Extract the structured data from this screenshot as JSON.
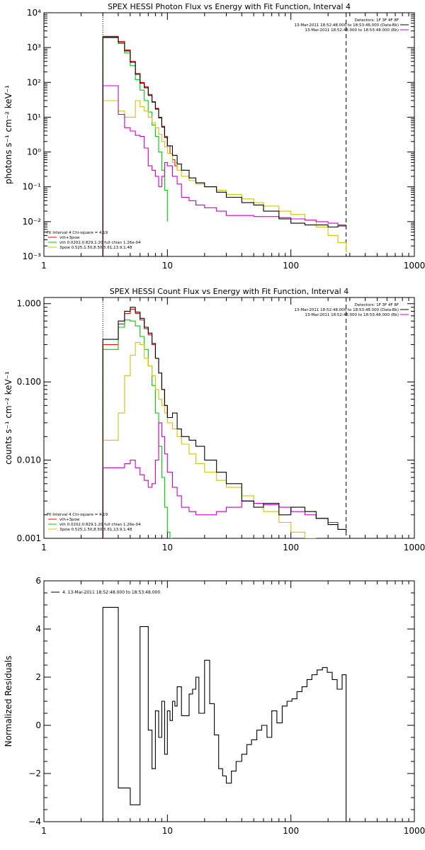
{
  "chart_data": [
    {
      "type": "line",
      "step": true,
      "title": "SPEX HESSI Photon Flux vs Energy with Fit Function, Interval 4",
      "xlabel": "",
      "ylabel": "photons s⁻¹ cm⁻² keV⁻¹",
      "xscale": "log",
      "yscale": "log",
      "xlim": [
        1,
        1000
      ],
      "ylim": [
        0.001,
        10000
      ],
      "xticks": [
        1,
        10,
        100,
        1000
      ],
      "xtick_labels": [
        "1",
        "10",
        "100",
        "1000"
      ],
      "yticks": [
        0.001,
        0.01,
        0.1,
        1,
        10,
        100,
        1000,
        10000
      ],
      "ytick_labels": [
        "10⁻³",
        "10⁻²",
        "10⁻¹",
        "10⁰",
        "10¹",
        "10²",
        "10³",
        "10⁴"
      ],
      "vlines": [
        {
          "x": 3,
          "color": "#000000",
          "style": "dotted"
        },
        {
          "x": 280,
          "color": "#000000",
          "style": "dashed"
        }
      ],
      "legend_topright": [
        "Detectors: 1F 3F 4F 8F",
        "13-Mar-2011 18:52:48.000 to 18:53:48.000 (Data-Bk)",
        "13-Mar-2011 18:52:48.000 to 18:53:48.000 (Bk)"
      ],
      "legend_bottomleft": [
        "Fit Interval 4   Chi-square = 4.19",
        "vth+3pow",
        "vth 0.0202,0.829,1.20  full chian 1.26e-04",
        "3pow 0.525,1.50,8.50,5.61,13.9,1.48"
      ],
      "series": [
        {
          "color": "#ff0000",
          "x": [
            3,
            3.5,
            4,
            4.5,
            5,
            5.5,
            6,
            6.5,
            7,
            7.5,
            8,
            8.5,
            9,
            9.5,
            10,
            10.5,
            11,
            11.5,
            12
          ],
          "y": [
            2100,
            2100,
            1500,
            850,
            400,
            180,
            100,
            75,
            45,
            28,
            18,
            10,
            5.5,
            2.8,
            1.5,
            0.9,
            0.6,
            0.4,
            0.3
          ]
        },
        {
          "color": "#00cc00",
          "x": [
            3,
            3.5,
            4,
            4.5,
            5,
            5.5,
            6,
            6.5,
            7,
            7.5,
            8,
            8.5,
            9,
            9.5,
            10
          ],
          "y": [
            1900,
            1900,
            1300,
            700,
            300,
            120,
            60,
            30,
            14,
            6,
            2.8,
            1,
            0.3,
            0.08,
            0.01
          ]
        },
        {
          "color": "#d4c400",
          "x": [
            3,
            3.5,
            4,
            4.5,
            5,
            5.5,
            6,
            6.5,
            7,
            7.5,
            8,
            8.5,
            9,
            9.5,
            10,
            11,
            12,
            13,
            15,
            17,
            20,
            25,
            30,
            40,
            50,
            60,
            80,
            100,
            130,
            160,
            200,
            240,
            280
          ],
          "y": [
            30,
            30,
            15,
            10,
            10,
            30,
            20,
            15,
            10,
            7,
            5,
            3.2,
            2,
            1.4,
            0.9,
            0.5,
            0.3,
            0.2,
            0.15,
            0.12,
            0.1,
            0.08,
            0.06,
            0.045,
            0.035,
            0.028,
            0.02,
            0.016,
            0.011,
            0.007,
            0.004,
            0.0025,
            0.0013
          ]
        },
        {
          "color": "#cc00cc",
          "x": [
            3,
            3.5,
            4,
            4.5,
            5,
            5.5,
            6,
            6.5,
            7,
            7.5,
            8,
            8.5,
            9,
            9.5,
            10,
            11,
            12,
            13,
            15,
            17,
            20,
            25,
            30,
            40,
            50,
            60,
            80,
            100,
            130,
            160,
            200,
            240,
            280
          ],
          "y": [
            80,
            80,
            12,
            5,
            4,
            3,
            2.8,
            1.3,
            0.4,
            0.3,
            0.2,
            0.1,
            0.2,
            0.5,
            0.4,
            0.2,
            0.12,
            0.05,
            0.04,
            0.03,
            0.025,
            0.02,
            0.015,
            0.015,
            0.014,
            0.014,
            0.013,
            0.012,
            0.011,
            0.01,
            0.009,
            0.008,
            0.008
          ]
        },
        {
          "color": "#000000",
          "x": [
            3,
            3.5,
            4,
            4.5,
            5,
            5.5,
            6,
            6.5,
            7,
            7.5,
            8,
            8.5,
            9,
            9.5,
            10,
            11,
            12,
            13,
            15,
            17,
            20,
            25,
            30,
            40,
            50,
            60,
            80,
            100,
            130,
            160,
            200,
            240,
            280
          ],
          "y": [
            2000,
            2000,
            1400,
            800,
            380,
            170,
            95,
            70,
            42,
            27,
            17,
            9.5,
            5.2,
            2.6,
            1.5,
            0.8,
            0.45,
            0.3,
            0.18,
            0.13,
            0.1,
            0.07,
            0.05,
            0.035,
            0.03,
            0.02,
            0.012,
            0.009,
            0.008,
            0.008,
            0.007,
            0.0075,
            0.007
          ]
        }
      ]
    },
    {
      "type": "line",
      "step": true,
      "title": "SPEX HESSI Count Flux vs Energy with Fit Function, Interval 4",
      "xlabel": "",
      "ylabel": "counts s⁻¹ cm⁻² keV⁻¹",
      "xscale": "log",
      "yscale": "log",
      "xlim": [
        1,
        1000
      ],
      "ylim": [
        0.001,
        1.2
      ],
      "xticks": [
        1,
        10,
        100,
        1000
      ],
      "xtick_labels": [
        "1",
        "10",
        "100",
        "1000"
      ],
      "yticks": [
        0.001,
        0.01,
        0.1,
        1
      ],
      "ytick_labels": [
        "0.001",
        "0.010",
        "0.100",
        "1.000"
      ],
      "vlines": [
        {
          "x": 3,
          "color": "#000000",
          "style": "dotted"
        },
        {
          "x": 280,
          "color": "#000000",
          "style": "dashed"
        }
      ],
      "legend_topright": [
        "Detectors: 1F 3F 4F 8F",
        "13-Mar-2011 18:52:48.000 to 18:53:48.000 (Data-Bk)",
        "13-Mar-2011 18:52:48.000 to 18:53:48.000 (Bk)"
      ],
      "legend_bottomleft": [
        "Fit Interval 4   Chi-square = 4.19",
        "vth+3pow",
        "vth 0.0202,0.829,1.20  full chian 1.26e-04",
        "3pow 0.525,1.50,8.50,5.61,13.9,1.48"
      ],
      "series": [
        {
          "color": "#ff0000",
          "x": [
            3,
            3.5,
            4,
            4.5,
            5,
            5.5,
            6,
            6.5,
            7,
            7.5,
            8,
            8.5,
            9,
            9.5,
            10
          ],
          "y": [
            0.3,
            0.3,
            0.55,
            0.75,
            0.85,
            0.75,
            0.62,
            0.48,
            0.4,
            0.3,
            0.2,
            0.13,
            0.08,
            0.05,
            0.035
          ]
        },
        {
          "color": "#00cc00",
          "x": [
            3,
            3.5,
            4,
            4.5,
            5,
            5.5,
            6,
            6.5,
            7,
            7.5,
            8,
            8.5,
            9,
            9.5,
            10,
            10.5,
            11
          ],
          "y": [
            0.26,
            0.26,
            0.5,
            0.62,
            0.6,
            0.52,
            0.38,
            0.26,
            0.16,
            0.09,
            0.04,
            0.015,
            0.006,
            0.0025,
            0.0012,
            0.001,
            0.001
          ]
        },
        {
          "color": "#d4c400",
          "x": [
            3,
            3.5,
            4,
            4.5,
            5,
            5.5,
            6,
            6.5,
            7,
            7.5,
            8,
            8.5,
            9,
            9.5,
            10,
            11,
            12,
            13,
            15,
            17,
            20,
            25,
            30,
            40,
            50,
            60,
            80,
            100,
            130,
            160
          ],
          "y": [
            0.018,
            0.018,
            0.04,
            0.12,
            0.22,
            0.32,
            0.3,
            0.2,
            0.16,
            0.12,
            0.08,
            0.06,
            0.05,
            0.04,
            0.03,
            0.025,
            0.02,
            0.016,
            0.012,
            0.009,
            0.007,
            0.0055,
            0.0045,
            0.0035,
            0.0028,
            0.0022,
            0.0016,
            0.0012,
            0.001,
            0.001
          ]
        },
        {
          "color": "#cc00cc",
          "x": [
            3,
            3.5,
            4,
            4.5,
            5,
            5.5,
            6,
            6.5,
            7,
            7.5,
            8,
            8.5,
            9,
            9.5,
            10,
            11,
            12,
            13,
            15,
            17,
            20,
            25,
            30,
            40,
            50,
            60,
            80,
            100,
            130,
            160,
            200,
            240,
            280
          ],
          "y": [
            0.008,
            0.008,
            0.008,
            0.009,
            0.01,
            0.008,
            0.0065,
            0.0055,
            0.0045,
            0.005,
            0.01,
            0.03,
            0.02,
            0.012,
            0.007,
            0.0045,
            0.0035,
            0.0025,
            0.0022,
            0.002,
            0.002,
            0.0022,
            0.0025,
            0.003,
            0.0028,
            0.0027,
            0.0025,
            0.0022,
            0.002,
            0.0018,
            0.0016,
            0.0013,
            0.0013
          ]
        },
        {
          "color": "#000000",
          "x": [
            3,
            3.5,
            4,
            4.5,
            5,
            5.5,
            6,
            6.5,
            7,
            7.5,
            8,
            8.5,
            9,
            9.5,
            10,
            11,
            12,
            13,
            15,
            17,
            20,
            25,
            30,
            40,
            50,
            60,
            80,
            100,
            130,
            160,
            200,
            240,
            280
          ],
          "y": [
            0.35,
            0.35,
            0.6,
            0.8,
            0.9,
            0.78,
            0.65,
            0.5,
            0.42,
            0.31,
            0.2,
            0.13,
            0.08,
            0.05,
            0.035,
            0.04,
            0.025,
            0.02,
            0.018,
            0.015,
            0.01,
            0.007,
            0.005,
            0.003,
            0.0025,
            0.0028,
            0.002,
            0.0025,
            0.0022,
            0.0018,
            0.0015,
            0.0013,
            0.0012
          ]
        }
      ]
    },
    {
      "type": "line",
      "step": true,
      "title": "",
      "xlabel": "",
      "ylabel": "Normalized Residuals",
      "xscale": "log",
      "yscale": "linear",
      "xlim": [
        1,
        1000
      ],
      "ylim": [
        -4,
        6
      ],
      "xticks": [
        1,
        10,
        100,
        1000
      ],
      "xtick_labels": [
        "1",
        "10",
        "100",
        "1000"
      ],
      "yticks": [
        -4,
        -2,
        0,
        2,
        4,
        6
      ],
      "ytick_labels": [
        "−4",
        "−2",
        "0",
        "2",
        "4",
        "6"
      ],
      "legend_topleft": [
        "4. 13-Mar-2011 18:52:48.000 to 18:53:48.000"
      ],
      "series": [
        {
          "color": "#000000",
          "x": [
            3,
            4,
            5,
            6,
            7,
            7.5,
            8,
            8.5,
            9,
            9.5,
            10,
            10.5,
            11,
            11.5,
            12,
            13,
            15,
            16,
            17,
            18,
            20,
            22,
            24,
            26,
            28,
            30,
            33,
            36,
            40,
            44,
            48,
            53,
            58,
            64,
            70,
            77,
            85,
            93,
            102,
            112,
            123,
            135,
            148,
            163,
            180,
            197,
            216,
            237,
            260,
            280
          ],
          "y": [
            4.9,
            -2.6,
            -3.3,
            4.1,
            -0.2,
            -1.8,
            0.6,
            -0.5,
            1.0,
            -1.2,
            0.6,
            0.2,
            1.0,
            0.8,
            1.6,
            0.4,
            1.3,
            1.5,
            2.0,
            0.5,
            2.7,
            0.9,
            -0.4,
            -1.8,
            -2.1,
            -2.4,
            -1.9,
            -1.5,
            -1.2,
            -0.8,
            -0.6,
            -0.2,
            0.0,
            -0.5,
            0.6,
            0.1,
            0.8,
            1.0,
            1.1,
            1.4,
            1.6,
            1.9,
            2.1,
            2.3,
            2.4,
            2.2,
            1.9,
            1.5,
            2.1,
            2.1
          ]
        }
      ]
    }
  ]
}
